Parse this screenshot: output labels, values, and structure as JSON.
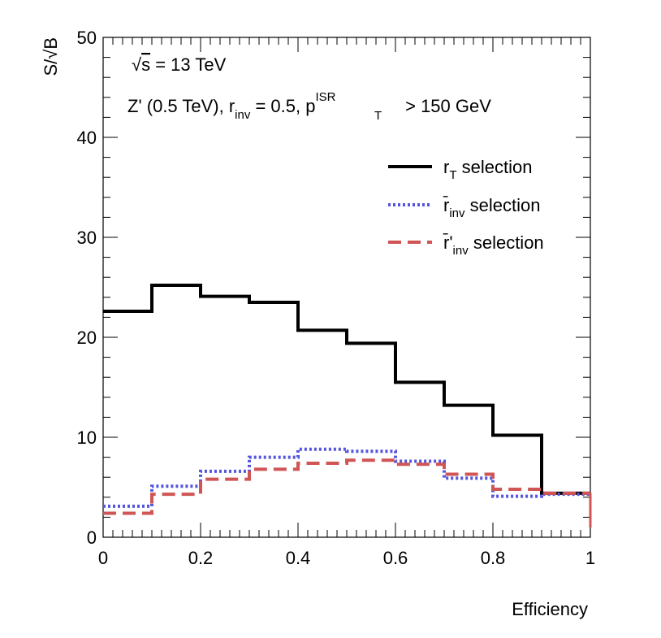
{
  "chart_data": {
    "type": "line",
    "drawstyle": "steps",
    "xlabel": "Efficiency",
    "ylabel": "S/√B",
    "xlim": [
      0,
      1
    ],
    "ylim": [
      0,
      50
    ],
    "x_ticks": [
      "0",
      "0.2",
      "0.4",
      "0.6",
      "0.8",
      "1"
    ],
    "y_ticks": [
      "0",
      "10",
      "20",
      "30",
      "40",
      "50"
    ],
    "bin_edges": [
      0,
      0.1,
      0.2,
      0.3,
      0.4,
      0.5,
      0.6,
      0.7,
      0.8,
      0.9,
      1.0
    ],
    "annotations": {
      "line1": {
        "sqrt": "√",
        "s": "s",
        "rest": " = 13 TeV"
      },
      "line2": {
        "part1": "Z' (0.5 TeV), r",
        "sub_inv": "inv",
        "part2": " = 0.5, p",
        "sup_isr": "ISR",
        "sub_t": "T",
        "part3": " > 150 GeV"
      }
    },
    "series": [
      {
        "name": "r_T selection",
        "legend_main": "r",
        "legend_sub": "T",
        "legend_rest": " selection",
        "color": "#000000",
        "style": "solid",
        "values": [
          22.6,
          25.2,
          24.1,
          23.5,
          20.7,
          19.4,
          15.5,
          13.2,
          10.2,
          4.4
        ]
      },
      {
        "name": "r̄_inv selection",
        "legend_main": "r̄",
        "legend_sub": "inv",
        "legend_rest": " selection",
        "color": "#5555dd",
        "style": "dotted",
        "values": [
          3.1,
          5.1,
          6.6,
          8.0,
          8.8,
          8.6,
          7.6,
          5.9,
          4.1,
          4.3
        ]
      },
      {
        "name": "r̄'_inv selection",
        "legend_main": "r̄'",
        "legend_sub": "inv",
        "legend_rest": " selection",
        "color": "#d05555",
        "style": "dashed",
        "values": [
          2.4,
          4.3,
          5.8,
          6.8,
          7.4,
          7.7,
          7.3,
          6.3,
          4.8,
          4.4
        ]
      }
    ]
  }
}
